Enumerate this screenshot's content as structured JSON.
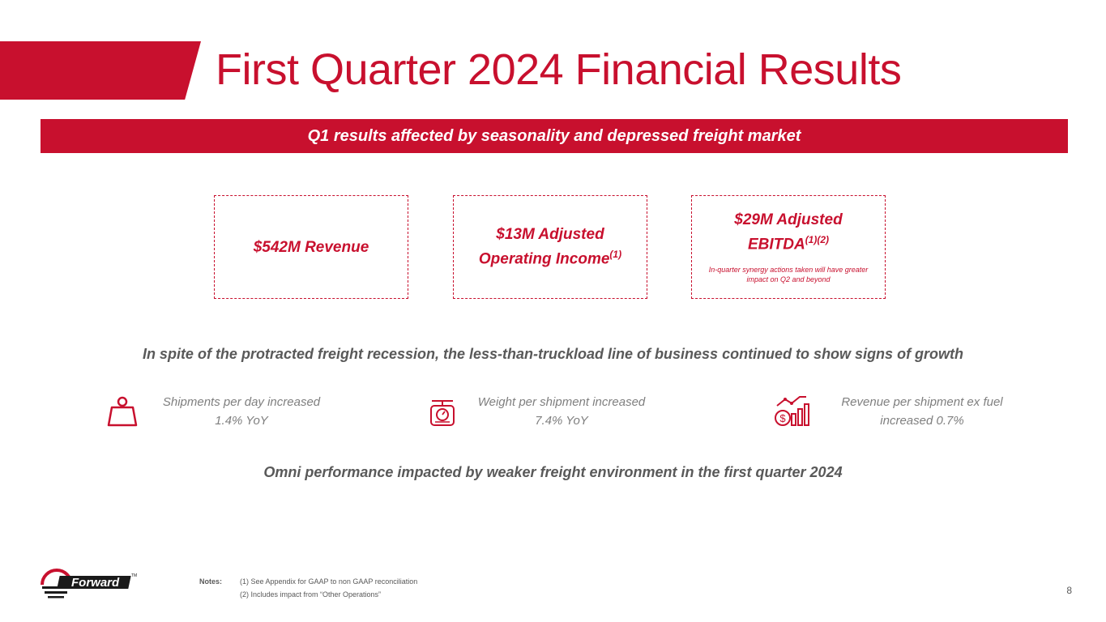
{
  "title": "First Quarter 2024 Financial Results",
  "banner": "Q1 results affected by seasonality and depressed freight market",
  "kpis": [
    {
      "main": "$542M Revenue",
      "sup": "",
      "note": ""
    },
    {
      "line1": "$13M Adjusted",
      "line2": "Operating Income",
      "sup": "(1)"
    },
    {
      "line1": "$29M Adjusted",
      "line2": "EBITDA",
      "sup": "(1)(2)",
      "note": "In-quarter synergy actions taken will have greater impact on Q2 and beyond"
    }
  ],
  "growth_heading": "In spite of the protracted freight recession, the less-than-truckload line of business continued to show signs of growth",
  "stats": [
    {
      "line1": "Shipments per day increased",
      "line2": "1.4% YoY",
      "icon": "weight-icon"
    },
    {
      "line1": "Weight per shipment increased",
      "line2": "7.4% YoY",
      "icon": "scale-icon"
    },
    {
      "line1": "Revenue per shipment ex fuel",
      "line2": "increased 0.7%",
      "icon": "revenue-growth-icon"
    }
  ],
  "omni_heading": "Omni performance impacted by weaker freight environment in the first quarter 2024",
  "logo": {
    "text": "Forward",
    "tm": "TM"
  },
  "notes": {
    "label": "Notes:",
    "items": [
      "(1)  See Appendix for GAAP to non GAAP reconciliation",
      "(2)  Includes impact from “Other Operations”"
    ]
  },
  "page_number": "8",
  "colors": {
    "accent": "#c8102e",
    "text_gray": "#595959",
    "stat_gray": "#7f7f7f"
  }
}
